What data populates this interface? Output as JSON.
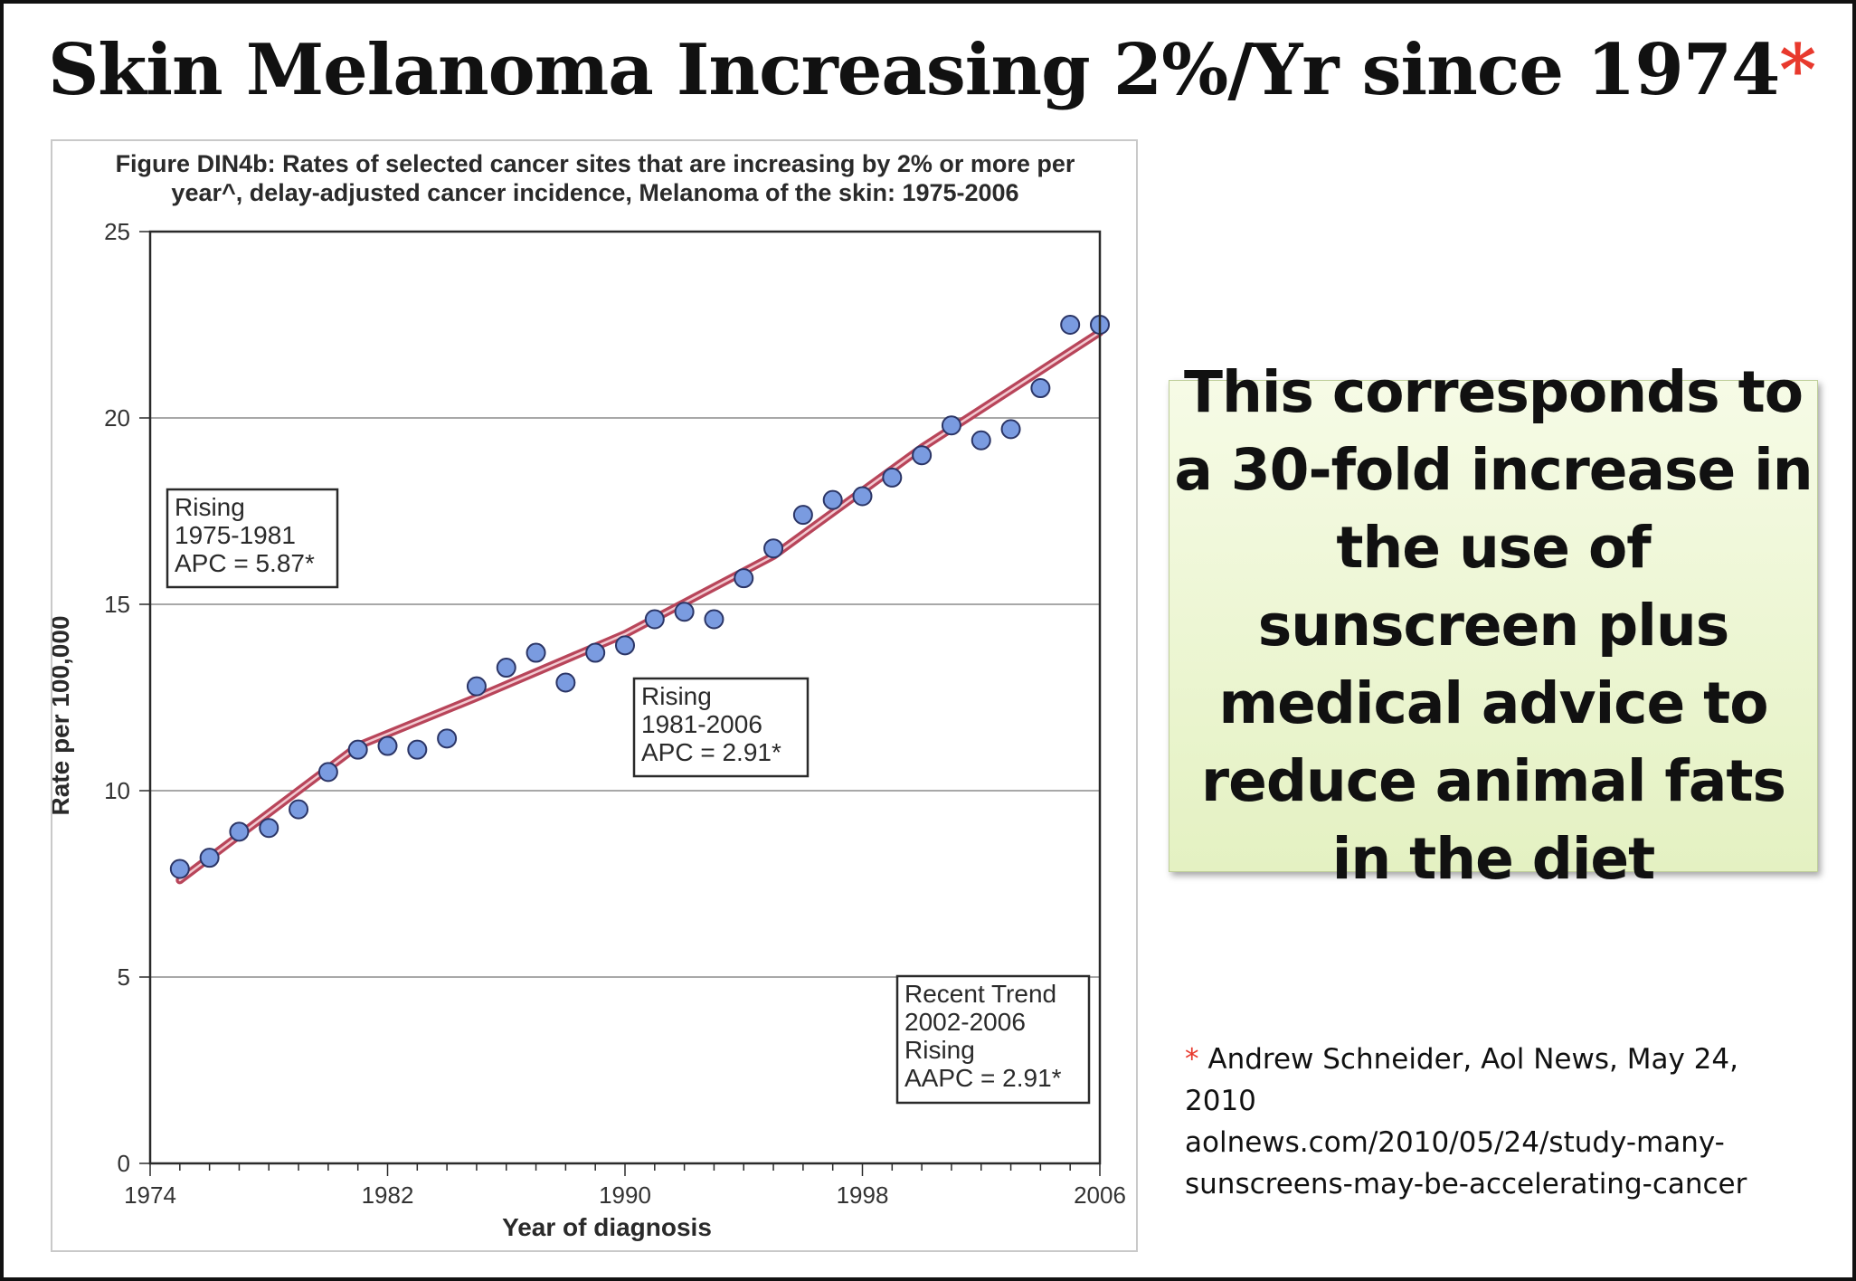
{
  "slide": {
    "title": "Skin Melanoma Increasing 2%/Yr since 1974",
    "title_star": "*",
    "star_color": "#e8392d",
    "note": {
      "text": "This corresponds to a 30-fold increase in the use of sunscreen plus medical advice to reduce animal fats in the diet",
      "background": "#e9f4cc"
    },
    "citation": {
      "star": "*",
      "lines": [
        "Andrew Schneider, Aol News, May 24,",
        "2010",
        "aolnews.com/2010/05/24/study-many-",
        "sunscreens-may-be-accelerating-cancer"
      ]
    }
  },
  "chart_data": {
    "type": "scatter",
    "title_lines": [
      "Figure DIN4b: Rates of selected cancer sites that are increasing by 2% or more per",
      "year^, delay-adjusted cancer incidence, Melanoma of the skin: 1975-2006"
    ],
    "xlabel": "Year of diagnosis",
    "ylabel": "Rate per 100,000",
    "xlim": [
      1974,
      2006
    ],
    "ylim": [
      0,
      25
    ],
    "xticks": [
      1974,
      1982,
      1990,
      1998,
      2006
    ],
    "yticks": [
      0,
      5,
      10,
      15,
      20,
      25
    ],
    "grid": "horizontal",
    "series": [
      {
        "kind": "observed",
        "marker_color": "#7a9be0",
        "x": [
          1975,
          1976,
          1977,
          1978,
          1979,
          1980,
          1981,
          1982,
          1983,
          1984,
          1985,
          1986,
          1987,
          1988,
          1989,
          1990,
          1991,
          1992,
          1993,
          1994,
          1995,
          1996,
          1997,
          1998,
          1999,
          2000,
          2001,
          2002,
          2003,
          2004,
          2005,
          2006
        ],
        "y": [
          7.9,
          8.2,
          8.9,
          9.0,
          9.5,
          10.5,
          11.1,
          11.2,
          11.1,
          11.4,
          12.8,
          13.3,
          13.7,
          12.9,
          13.7,
          13.9,
          14.6,
          14.8,
          14.6,
          15.7,
          16.5,
          17.4,
          17.8,
          17.9,
          18.4,
          19.0,
          19.8,
          19.4,
          19.7,
          20.8,
          22.5,
          22.5
        ]
      },
      {
        "kind": "trend",
        "line_color": "#b8455a",
        "x": [
          1975,
          1981,
          1985,
          1990,
          1995,
          2000,
          2006
        ],
        "y": [
          7.6,
          11.2,
          12.5,
          14.2,
          16.3,
          19.2,
          22.3
        ]
      }
    ],
    "annotations": [
      {
        "lines": [
          "Rising",
          "1975-1981",
          "APC =  5.87*"
        ]
      },
      {
        "lines": [
          "Rising",
          "1981-2006",
          "APC =  2.91*"
        ]
      },
      {
        "lines": [
          "Recent Trend",
          "2002-2006",
          "Rising",
          "AAPC =  2.91*"
        ]
      }
    ]
  }
}
